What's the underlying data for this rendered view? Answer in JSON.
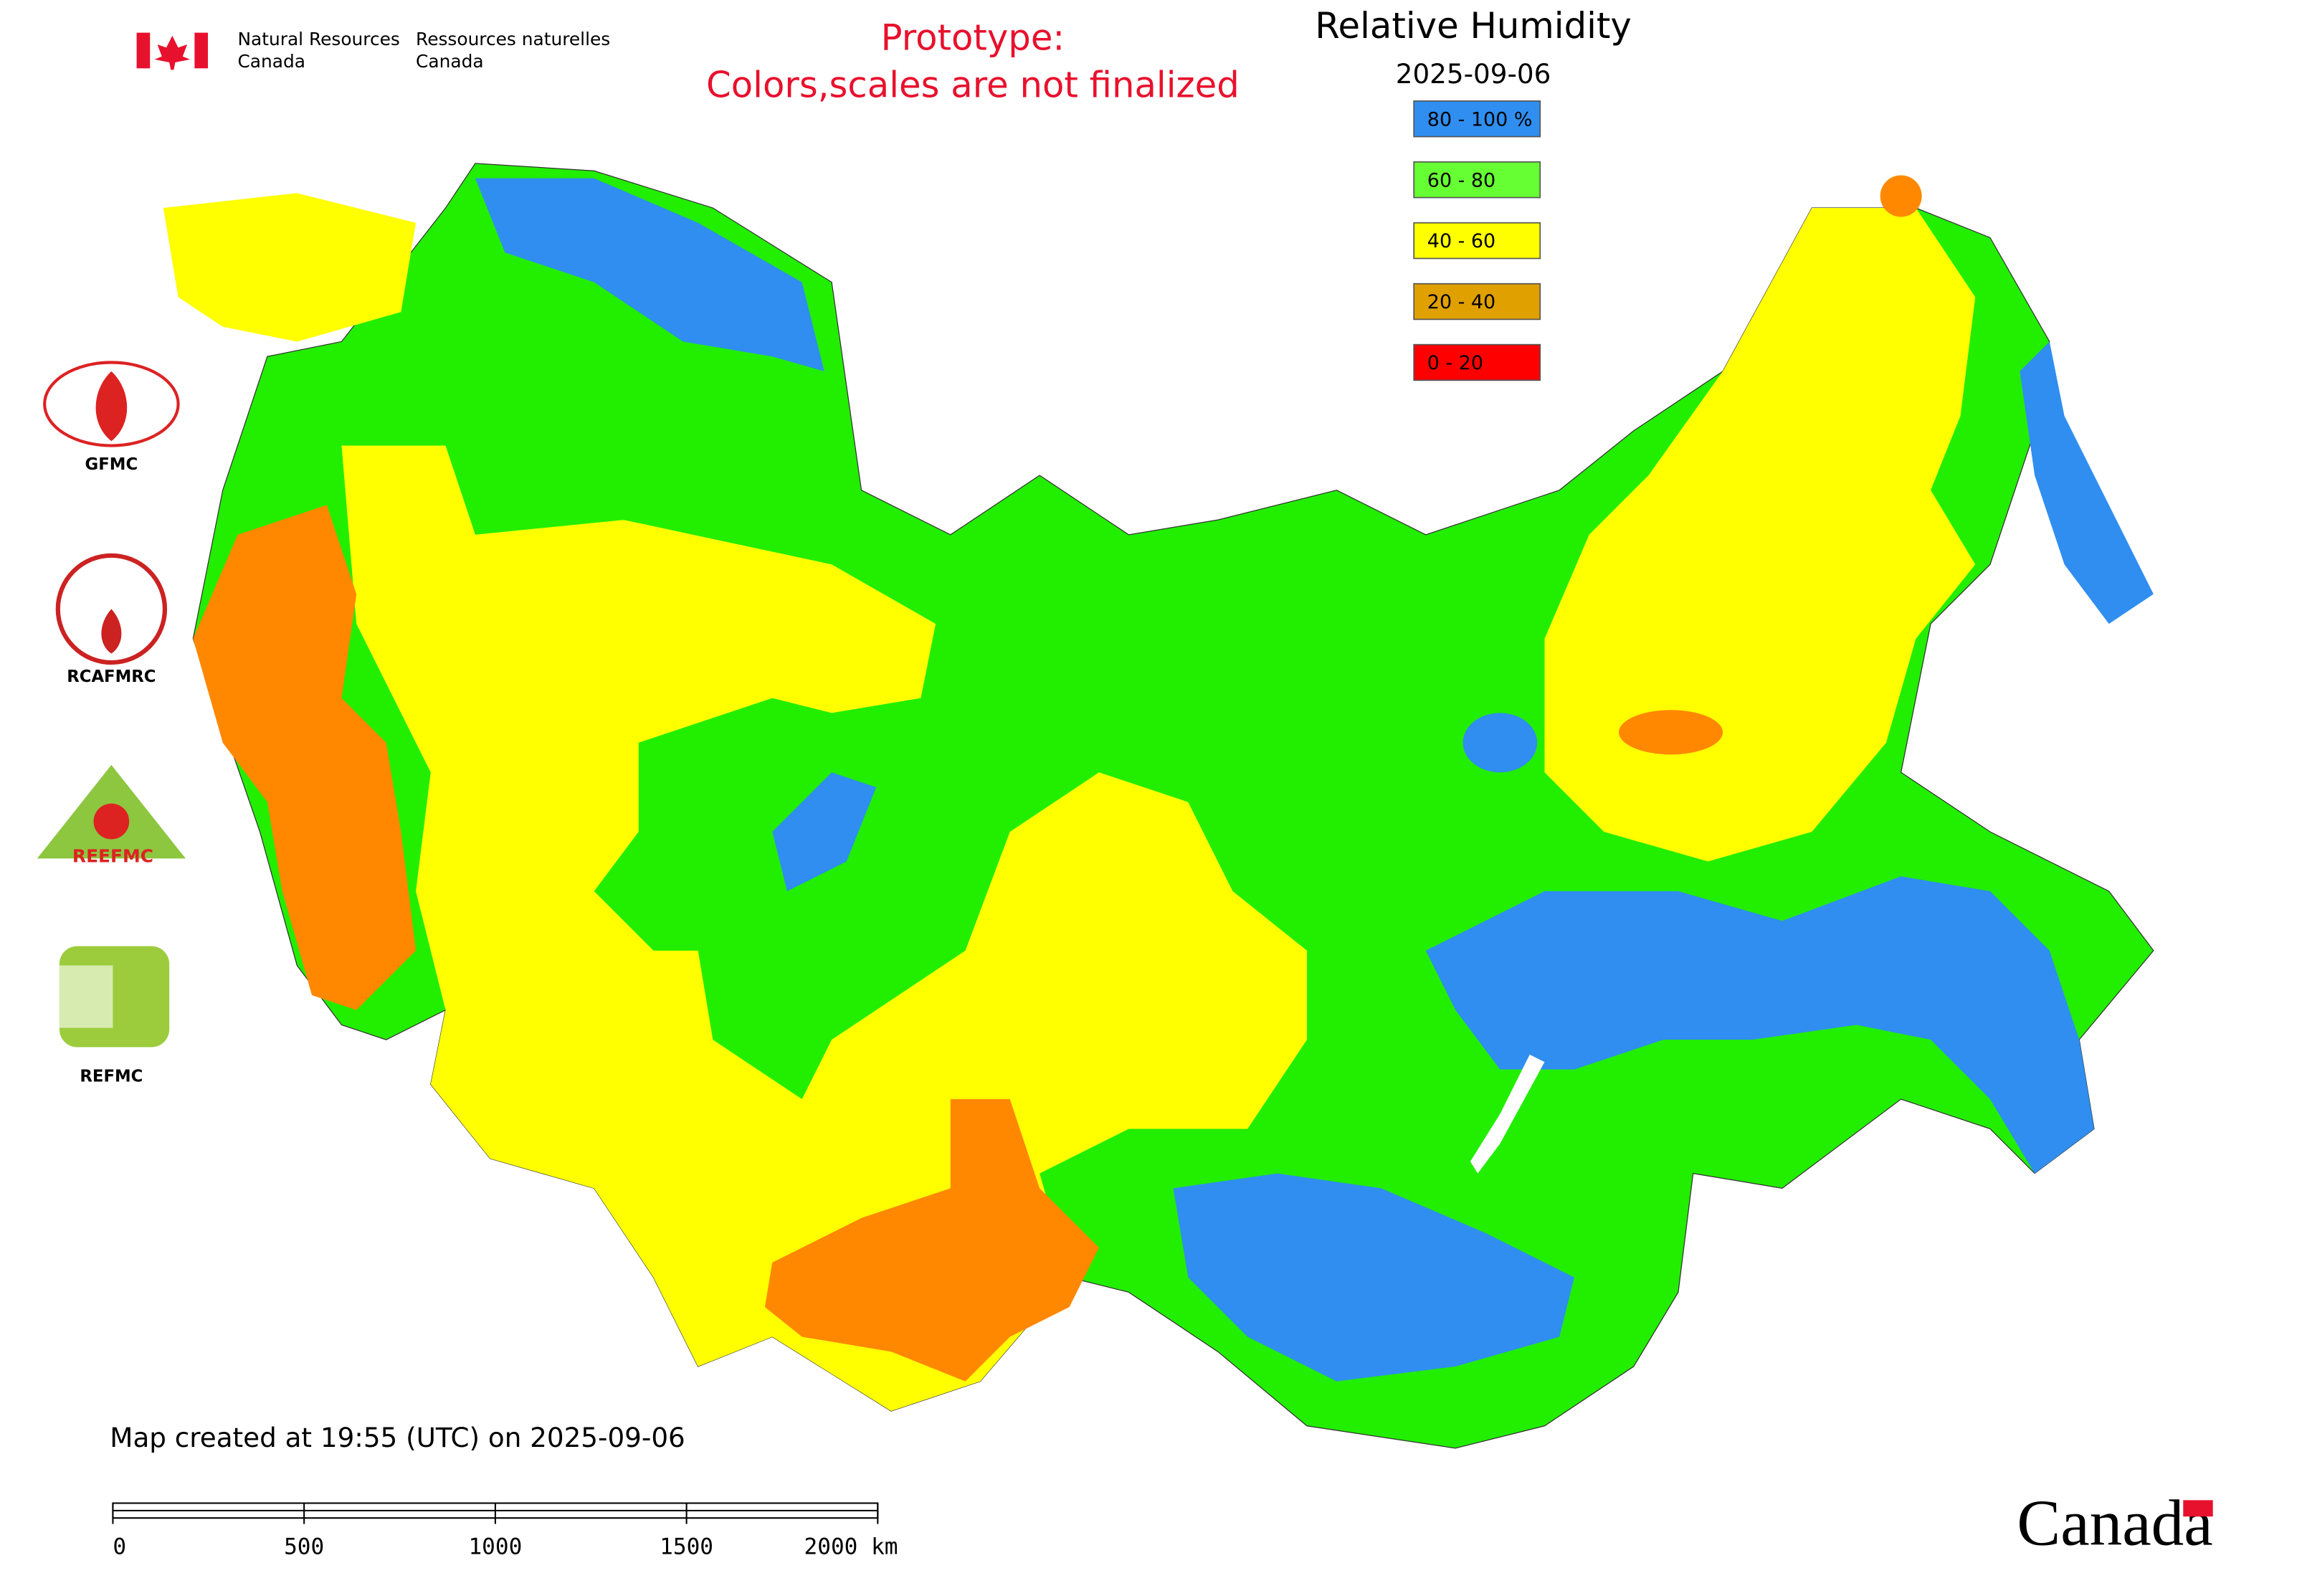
{
  "header": {
    "org_en": [
      "Natural Resources",
      "Canada"
    ],
    "org_fr": [
      "Ressources naturelles",
      "Canada"
    ],
    "prototype_note": [
      "Prototype:",
      "Colors,scales are not finalized"
    ]
  },
  "legend": {
    "title": "Relative Humidity",
    "date": "2025-09-06",
    "items": [
      {
        "label": "80 - 100 %",
        "color": "#2f8ef0"
      },
      {
        "label": "60 - 80",
        "color": "#66ff33"
      },
      {
        "label": "40 - 60",
        "color": "#ffff00"
      },
      {
        "label": "20 - 40",
        "color": "#e0a000"
      },
      {
        "label": "0 - 20",
        "color": "#ff0000"
      }
    ]
  },
  "logos": [
    "GFMC",
    "RCAFMRC",
    "REEFMC",
    "REFMC"
  ],
  "footer": {
    "created": "Map created at 19:55 (UTC) on 2025-09-06",
    "scale_labels": [
      "0",
      "500",
      "1000",
      "1500",
      "2000 km"
    ],
    "wordmark": "Canada"
  }
}
